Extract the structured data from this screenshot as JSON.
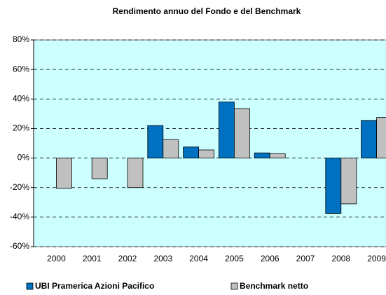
{
  "chart_data": {
    "type": "bar",
    "title": "Rendimento annuo del Fondo e del Benchmark",
    "categories": [
      "2000",
      "2001",
      "2002",
      "2003",
      "2004",
      "2005",
      "2006",
      "2007",
      "2008",
      "2009"
    ],
    "series": [
      {
        "name": "UBI Pramerica Azioni Pacifico",
        "color": "#0070c0",
        "values": [
          null,
          null,
          null,
          22,
          7.5,
          38,
          3.5,
          null,
          -37.5,
          25.5
        ]
      },
      {
        "name": "Benchmark netto",
        "color": "#c0c0c0",
        "values": [
          -20.5,
          -14,
          -20,
          12.5,
          5.5,
          33.5,
          3,
          null,
          -31,
          27.5
        ]
      }
    ],
    "ylim": [
      -60,
      80
    ],
    "yticks": [
      {
        "value": -60,
        "label": "-60%"
      },
      {
        "value": -40,
        "label": "-40%"
      },
      {
        "value": -20,
        "label": "-20%"
      },
      {
        "value": 0,
        "label": "0%"
      },
      {
        "value": 20,
        "label": "20%"
      },
      {
        "value": 40,
        "label": "40%"
      },
      {
        "value": 60,
        "label": "60%"
      },
      {
        "value": 80,
        "label": "80%"
      }
    ],
    "grid": true,
    "plot_background": "#ccffff",
    "legend": "bottom"
  }
}
